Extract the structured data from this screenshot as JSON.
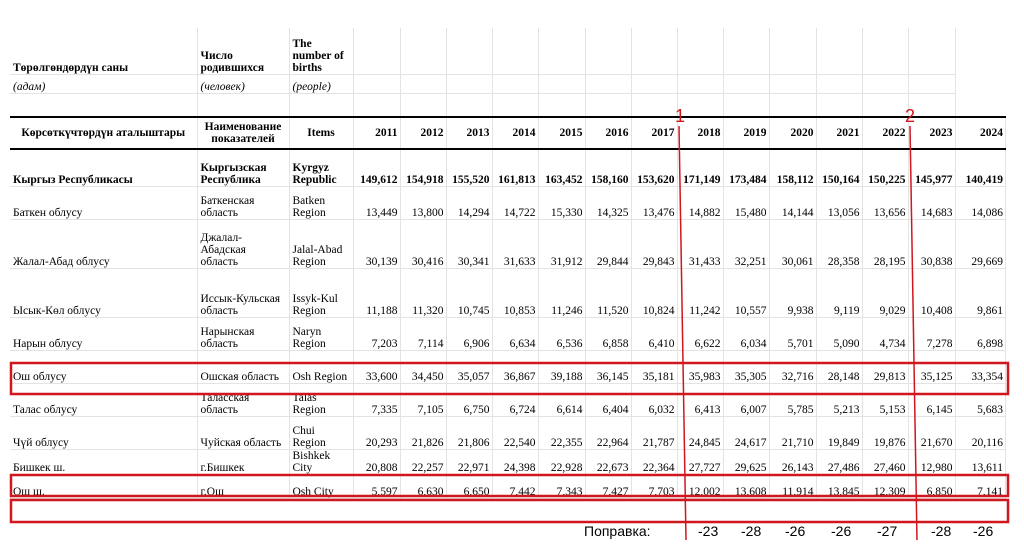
{
  "header": {
    "col1": {
      "title": "Төрөлгөндөрдүн саны",
      "unit": "(адам)",
      "label": "Көрсөткүчтөрдүн аталыштары"
    },
    "col2": {
      "title": "Число родившихся",
      "unit": "(человек)",
      "label": "Наименование показателей"
    },
    "col3": {
      "title": "The number of births",
      "unit": "(people)",
      "label": "Items"
    },
    "years": [
      "2011",
      "2012",
      "2013",
      "2014",
      "2015",
      "2016",
      "2017",
      "2018",
      "2019",
      "2020",
      "2021",
      "2022",
      "2023",
      "2024"
    ]
  },
  "rows": [
    {
      "ky": "Кыргыз Республикасы",
      "ru": "Кыргызская Республика",
      "en": "Kyrgyz Republic",
      "values": [
        "149,612",
        "154,918",
        "155,520",
        "161,813",
        "163,452",
        "158,160",
        "153,620",
        "171,149",
        "173,484",
        "158,112",
        "150,164",
        "150,225",
        "145,977",
        "140,419"
      ]
    },
    {
      "ky": "Баткен облусу",
      "ru": "Баткенская область",
      "en": "Batken Region",
      "values": [
        "13,449",
        "13,800",
        "14,294",
        "14,722",
        "15,330",
        "14,325",
        "13,476",
        "14,882",
        "15,480",
        "14,144",
        "13,056",
        "13,656",
        "14,683",
        "14,086"
      ]
    },
    {
      "ky": "Жалал-Абад облусу",
      "ru": "Джалал-Абадская область",
      "en": "Jalal-Abad Region",
      "values": [
        "30,139",
        "30,416",
        "30,341",
        "31,633",
        "31,912",
        "29,844",
        "29,843",
        "31,433",
        "32,251",
        "30,061",
        "28,358",
        "28,195",
        "30,838",
        "29,669"
      ]
    },
    {
      "ky": "Ысык-Көл облусу",
      "ru": "Иссык-Кульская область",
      "en": "Issyk-Kul Region",
      "values": [
        "11,188",
        "11,320",
        "10,745",
        "10,853",
        "11,246",
        "11,520",
        "10,824",
        "11,242",
        "10,557",
        "9,938",
        "9,119",
        "9,029",
        "10,408",
        "9,861"
      ]
    },
    {
      "ky": "Нарын облусу",
      "ru": "Нарынская область",
      "en": "Naryn Region",
      "values": [
        "7,203",
        "7,114",
        "6,906",
        "6,634",
        "6,536",
        "6,858",
        "6,410",
        "6,622",
        "6,034",
        "5,701",
        "5,090",
        "4,734",
        "7,278",
        "6,898"
      ]
    },
    {
      "ky": "Ош облусу",
      "ru": "Ошская область",
      "en": "Osh Region",
      "values": [
        "33,600",
        "34,450",
        "35,057",
        "36,867",
        "39,188",
        "36,145",
        "35,181",
        "35,983",
        "35,305",
        "32,716",
        "28,148",
        "29,813",
        "35,125",
        "33,354"
      ]
    },
    {
      "ky": "Талас облусу",
      "ru": "Таласская область",
      "en": "Talas Region",
      "values": [
        "7,335",
        "7,105",
        "6,750",
        "6,724",
        "6,614",
        "6,404",
        "6,032",
        "6,413",
        "6,007",
        "5,785",
        "5,213",
        "5,153",
        "6,145",
        "5,683"
      ]
    },
    {
      "ky": "Чүй облусу",
      "ru": "Чуйская область",
      "en": "Chui Region",
      "values": [
        "20,293",
        "21,826",
        "21,806",
        "22,540",
        "22,355",
        "22,964",
        "21,787",
        "24,845",
        "24,617",
        "21,710",
        "19,849",
        "19,876",
        "21,670",
        "20,116"
      ]
    },
    {
      "ky": "Бишкек ш.",
      "ru": "г.Бишкек",
      "en": "Bishkek City",
      "values": [
        "20,808",
        "22,257",
        "22,971",
        "24,398",
        "22,928",
        "22,673",
        "22,364",
        "27,727",
        "29,625",
        "26,143",
        "27,486",
        "27,460",
        "12,980",
        "13,611"
      ]
    },
    {
      "ky": "Ош ш.",
      "ru": "г.Ош",
      "en": "Osh City",
      "values": [
        "5,597",
        "6,630",
        "6,650",
        "7,442",
        "7,343",
        "7,427",
        "7,703",
        "12,002",
        "13,608",
        "11,914",
        "13,845",
        "12,309",
        "6,850",
        "7,141"
      ]
    }
  ],
  "annotations": {
    "marker1": "1",
    "marker2": "2",
    "correction_label": "Поправка:",
    "corrections": [
      "-23",
      "-28",
      "-26",
      "-26",
      "-27",
      "-28",
      "-26"
    ]
  },
  "colors": {
    "highlight": "#d0161e",
    "grid": "#e3e3e3"
  }
}
